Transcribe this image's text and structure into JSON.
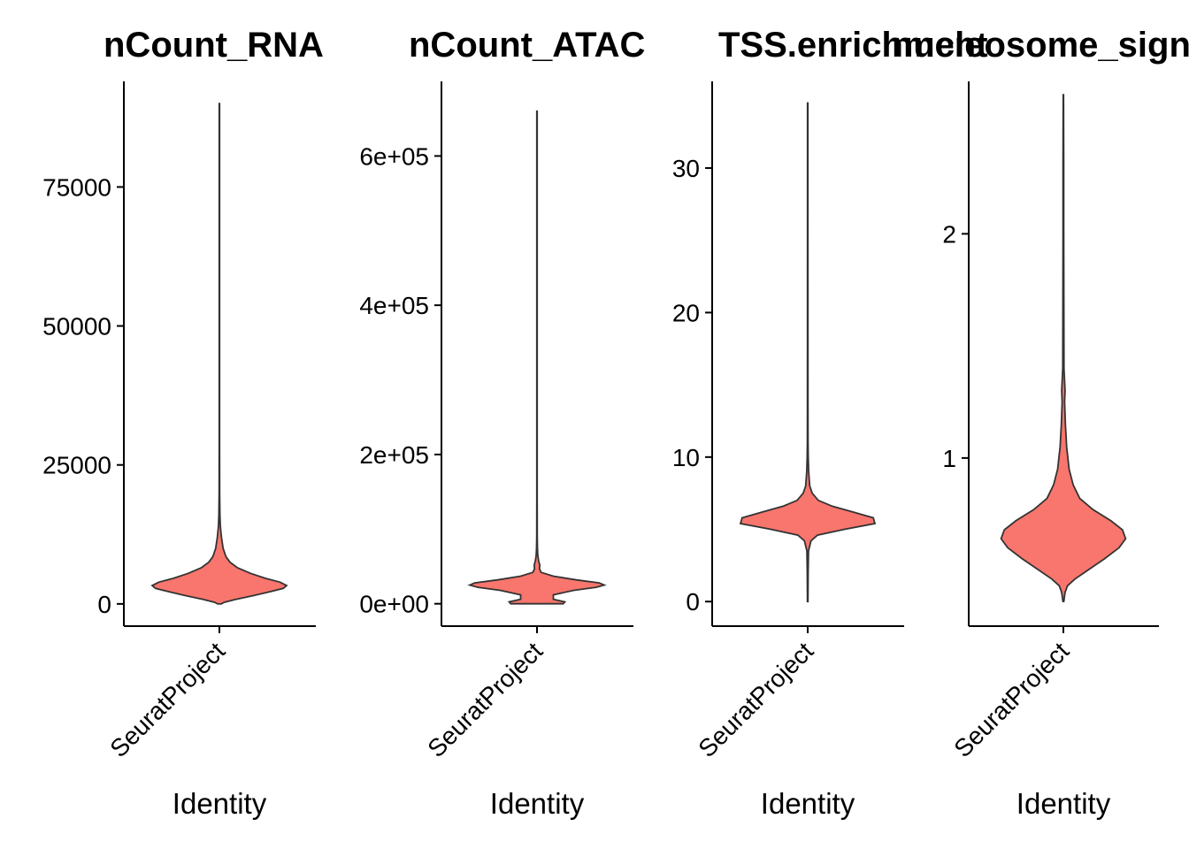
{
  "figure": {
    "background": "#ffffff",
    "violin_fill": "#F8766D",
    "violin_stroke": "#333333"
  },
  "chart_data": [
    {
      "type": "violin",
      "title": "nCount_RNA",
      "xlabel": "Identity",
      "ylabel": "",
      "categories": [
        "SeuratProject"
      ],
      "ylim": [
        -4000,
        94000
      ],
      "yticks": [
        0,
        25000,
        50000,
        75000
      ],
      "ytick_labels": [
        "0",
        "25000",
        "50000",
        "75000"
      ],
      "range": [
        0,
        90000
      ],
      "density": [
        [
          0,
          0.02
        ],
        [
          300,
          0.06
        ],
        [
          800,
          0.2
        ],
        [
          1500,
          0.42
        ],
        [
          2200,
          0.62
        ],
        [
          2800,
          0.78
        ],
        [
          3300,
          0.82
        ],
        [
          3900,
          0.74
        ],
        [
          4600,
          0.56
        ],
        [
          5500,
          0.38
        ],
        [
          6500,
          0.22
        ],
        [
          7500,
          0.13
        ],
        [
          8500,
          0.08
        ],
        [
          10000,
          0.045
        ],
        [
          12000,
          0.025
        ],
        [
          14000,
          0.012
        ],
        [
          16000,
          0.006
        ],
        [
          20000,
          0.003
        ],
        [
          30000,
          0.002
        ],
        [
          90000,
          0.002
        ]
      ]
    },
    {
      "type": "violin",
      "title": "nCount_ATAC",
      "xlabel": "Identity",
      "ylabel": "",
      "categories": [
        "SeuratProject"
      ],
      "ylim": [
        -30000,
        700000
      ],
      "yticks": [
        0,
        200000,
        400000,
        600000
      ],
      "ytick_labels": [
        "0e+00",
        "2e+05",
        "4e+05",
        "6e+05"
      ],
      "range": [
        0,
        660000
      ],
      "density": [
        [
          0,
          0.32
        ],
        [
          2500,
          0.34
        ],
        [
          6000,
          0.2
        ],
        [
          12000,
          0.2
        ],
        [
          18000,
          0.45
        ],
        [
          22000,
          0.72
        ],
        [
          25000,
          0.82
        ],
        [
          28000,
          0.76
        ],
        [
          32000,
          0.48
        ],
        [
          37000,
          0.2
        ],
        [
          42000,
          0.05
        ],
        [
          47000,
          0.03
        ],
        [
          52000,
          0.035
        ],
        [
          57000,
          0.02
        ],
        [
          65000,
          0.01
        ],
        [
          75000,
          0.005
        ],
        [
          90000,
          0.003
        ],
        [
          150000,
          0.002
        ],
        [
          660000,
          0.002
        ]
      ]
    },
    {
      "type": "violin",
      "title": "TSS.enrichment",
      "xlabel": "Identity",
      "ylabel": "",
      "categories": [
        "SeuratProject"
      ],
      "ylim": [
        -1.7,
        36
      ],
      "yticks": [
        0,
        10,
        20,
        30
      ],
      "ytick_labels": [
        "0",
        "10",
        "20",
        "30"
      ],
      "range": [
        0,
        34.5
      ],
      "density": [
        [
          0,
          0.003
        ],
        [
          2,
          0.005
        ],
        [
          3.5,
          0.01
        ],
        [
          4.2,
          0.04
        ],
        [
          4.6,
          0.12
        ],
        [
          5.0,
          0.45
        ],
        [
          5.4,
          0.82
        ],
        [
          5.8,
          0.8
        ],
        [
          6.2,
          0.55
        ],
        [
          6.6,
          0.3
        ],
        [
          7.0,
          0.13
        ],
        [
          7.5,
          0.055
        ],
        [
          8.0,
          0.025
        ],
        [
          9.0,
          0.012
        ],
        [
          10.0,
          0.007
        ],
        [
          11.0,
          0.004
        ],
        [
          14.0,
          0.003
        ],
        [
          34.5,
          0.002
        ]
      ]
    },
    {
      "type": "violin",
      "title": "nucleosome_signal",
      "xlabel": "Identity",
      "ylabel": "",
      "categories": [
        "SeuratProject"
      ],
      "ylim": [
        0.25,
        2.68
      ],
      "yticks": [
        1,
        2
      ],
      "ytick_labels": [
        "1",
        "2"
      ],
      "range": [
        0.36,
        2.62
      ],
      "density": [
        [
          0.36,
          0.005
        ],
        [
          0.4,
          0.02
        ],
        [
          0.43,
          0.05
        ],
        [
          0.46,
          0.14
        ],
        [
          0.5,
          0.3
        ],
        [
          0.55,
          0.5
        ],
        [
          0.6,
          0.68
        ],
        [
          0.64,
          0.76
        ],
        [
          0.68,
          0.72
        ],
        [
          0.72,
          0.58
        ],
        [
          0.77,
          0.36
        ],
        [
          0.82,
          0.2
        ],
        [
          0.88,
          0.12
        ],
        [
          0.95,
          0.07
        ],
        [
          1.05,
          0.04
        ],
        [
          1.15,
          0.025
        ],
        [
          1.25,
          0.015
        ],
        [
          1.3,
          0.02
        ],
        [
          1.4,
          0.008
        ],
        [
          1.6,
          0.006
        ],
        [
          2.0,
          0.004
        ],
        [
          2.3,
          0.004
        ],
        [
          2.62,
          0.002
        ]
      ]
    }
  ]
}
